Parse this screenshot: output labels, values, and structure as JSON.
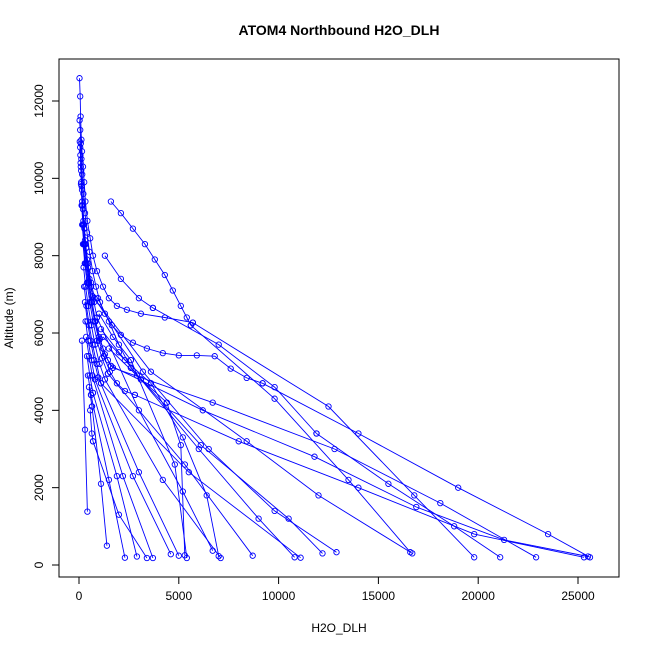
{
  "chart_data": {
    "type": "line",
    "title": "ATOM4 Northbound H2O_DLH",
    "xlabel": "H2O_DLH",
    "ylabel": "Altitude (m)",
    "xlim": [
      0,
      27000
    ],
    "ylim": [
      0,
      12600
    ],
    "x_ticks": [
      0,
      5000,
      10000,
      15000,
      20000,
      25000
    ],
    "y_ticks": [
      0,
      2000,
      4000,
      6000,
      8000,
      10000,
      12000
    ],
    "color": "#0000ff",
    "marker": "open-circle",
    "grid": false,
    "legend": "none",
    "series": [
      {
        "x": [
          25,
          60,
          80,
          120,
          150,
          200,
          260,
          320,
          420,
          560,
          700,
          900,
          1200,
          1500,
          1900,
          2400,
          3100,
          4300,
          5700
        ],
        "y": [
          12590,
          12120,
          11600,
          11000,
          10700,
          10300,
          9900,
          9400,
          8900,
          8450,
          8000,
          7600,
          7200,
          6900,
          6700,
          6600,
          6500,
          6400,
          6270
        ]
      },
      {
        "x": [
          5700,
          12500,
          16800,
          19800
        ],
        "y": [
          6270,
          4100,
          1800,
          200
        ]
      },
      {
        "x": [
          30,
          60,
          90,
          120,
          160,
          220,
          300,
          400,
          520,
          680,
          850,
          1050,
          1300,
          1650,
          2100,
          2700,
          3400,
          4200,
          5000,
          5900,
          6800,
          7600,
          8400,
          9200
        ],
        "y": [
          11500,
          11250,
          10900,
          10500,
          10100,
          9600,
          9100,
          8600,
          8100,
          7600,
          7200,
          6800,
          6500,
          6200,
          5950,
          5750,
          5600,
          5480,
          5420,
          5420,
          5400,
          5080,
          4840,
          4700
        ]
      },
      {
        "x": [
          9200,
          14000,
          19000,
          23500,
          25600
        ],
        "y": [
          4700,
          3400,
          2000,
          800,
          200
        ]
      },
      {
        "x": [
          40,
          70,
          110,
          150,
          200,
          270,
          350,
          450,
          600,
          750,
          900
        ],
        "y": [
          10950,
          10600,
          10200,
          9700,
          9200,
          8700,
          8200,
          7700,
          7200,
          6800,
          6400
        ]
      },
      {
        "x": [
          900,
          3000,
          5200,
          6700
        ],
        "y": [
          6400,
          4000,
          1900,
          370
        ]
      },
      {
        "x": [
          60,
          90,
          130,
          180,
          250,
          330,
          450,
          600,
          780
        ],
        "y": [
          10800,
          10300,
          9800,
          9300,
          8800,
          8300,
          7800,
          7300,
          6900
        ]
      },
      {
        "x": [
          780,
          3200,
          6500,
          9800,
          12900
        ],
        "y": [
          6900,
          5000,
          3000,
          1400,
          330
        ]
      },
      {
        "x": [
          80,
          110,
          160,
          220,
          300,
          400,
          520,
          680
        ],
        "y": [
          10400,
          9900,
          9400,
          8900,
          8400,
          7900,
          7400,
          6950
        ]
      },
      {
        "x": [
          680,
          3600,
          8400,
          12000,
          16700
        ],
        "y": [
          6950,
          5000,
          3200,
          1800,
          300
        ]
      },
      {
        "x": [
          100,
          150,
          210,
          290,
          380,
          500,
          650,
          820,
          1000,
          1200,
          1450,
          1700
        ],
        "y": [
          9850,
          9300,
          8800,
          8300,
          7800,
          7300,
          6800,
          6300,
          5900,
          5600,
          5300,
          5100
        ]
      },
      {
        "x": [
          1700,
          6700,
          12800,
          18100,
          22900
        ],
        "y": [
          5100,
          4200,
          3000,
          1600,
          200
        ]
      },
      {
        "x": [
          130,
          200,
          280,
          380,
          500,
          650,
          830,
          1050,
          1300,
          1600
        ],
        "y": [
          9300,
          8800,
          8300,
          7800,
          7300,
          6800,
          6300,
          5850,
          5450,
          5150
        ]
      },
      {
        "x": [
          1600,
          6200,
          11800,
          16900,
          21300,
          25500
        ],
        "y": [
          5150,
          4000,
          2800,
          1500,
          650,
          220
        ]
      },
      {
        "x": [
          160,
          240,
          330,
          450,
          600,
          780,
          1000,
          1250,
          1550,
          1900,
          2300,
          2800
        ],
        "y": [
          8800,
          8300,
          7800,
          7300,
          6800,
          6300,
          5800,
          5400,
          5000,
          4700,
          4500,
          4400
        ]
      },
      {
        "x": [
          2800,
          8000,
          14000,
          19800,
          25300
        ],
        "y": [
          4400,
          3200,
          2000,
          800,
          200
        ]
      },
      {
        "x": [
          200,
          290,
          400,
          540,
          700,
          900,
          1150,
          1450
        ],
        "y": [
          8300,
          7800,
          7300,
          6800,
          6300,
          5800,
          5350,
          4950
        ]
      },
      {
        "x": [
          1450,
          5300,
          8700
        ],
        "y": [
          4950,
          2600,
          240
        ]
      },
      {
        "x": [
          230,
          330,
          460,
          620,
          800,
          1030,
          1300
        ],
        "y": [
          7700,
          7200,
          6700,
          6200,
          5700,
          5200,
          4800
        ]
      },
      {
        "x": [
          1300,
          4200,
          7100
        ],
        "y": [
          4800,
          2200,
          180
        ]
      },
      {
        "x": [
          260,
          370,
          510,
          680,
          880,
          1100
        ],
        "y": [
          7200,
          6700,
          6200,
          5700,
          5200,
          4700
        ]
      },
      {
        "x": [
          1100,
          5500,
          11100
        ],
        "y": [
          4700,
          2400,
          190
        ]
      },
      {
        "x": [
          300,
          420,
          580,
          760,
          960
        ],
        "y": [
          6800,
          6300,
          5800,
          5300,
          4850
        ]
      },
      {
        "x": [
          960,
          3000,
          5000
        ],
        "y": [
          4850,
          2400,
          240
        ]
      },
      {
        "x": [
          330,
          460,
          620,
          800
        ],
        "y": [
          6300,
          5800,
          5300,
          4800
        ]
      },
      {
        "x": [
          800,
          2700,
          4600
        ],
        "y": [
          4800,
          2300,
          280
        ]
      },
      {
        "x": [
          360,
          500,
          660
        ],
        "y": [
          5900,
          5400,
          4900
        ]
      },
      {
        "x": [
          660,
          2200,
          3700
        ],
        "y": [
          4900,
          2300,
          180
        ]
      },
      {
        "x": [
          400,
          540,
          700
        ],
        "y": [
          5400,
          4900,
          4450
        ]
      },
      {
        "x": [
          700,
          1900,
          2900
        ],
        "y": [
          4450,
          2300,
          220
        ]
      },
      {
        "x": [
          450,
          600
        ],
        "y": [
          4900,
          4400
        ]
      },
      {
        "x": [
          600,
          1500,
          2300
        ],
        "y": [
          4400,
          2200,
          190
        ]
      },
      {
        "x": [
          500,
          650
        ],
        "y": [
          4600,
          4100
        ]
      },
      {
        "x": [
          650,
          1100,
          1400
        ],
        "y": [
          4100,
          2100,
          500
        ]
      },
      {
        "x": [
          560,
          640,
          700
        ],
        "y": [
          4000,
          3400,
          3200
        ]
      },
      {
        "x": [
          700,
          2000,
          3400
        ],
        "y": [
          3200,
          1300,
          180
        ]
      },
      {
        "x": [
          150,
          300,
          420
        ],
        "y": [
          5800,
          3500,
          1380
        ]
      },
      {
        "x": [
          1600,
          2100,
          2700,
          3300,
          3800,
          4300,
          4700,
          5100,
          5400,
          5600
        ],
        "y": [
          9400,
          9100,
          8700,
          8300,
          7900,
          7500,
          7100,
          6700,
          6400,
          6200
        ]
      },
      {
        "x": [
          5600,
          9800,
          13500,
          16600
        ],
        "y": [
          6200,
          4300,
          2200,
          330
        ]
      },
      {
        "x": [
          950,
          1500,
          2000,
          2600
        ],
        "y": [
          6900,
          6300,
          5700,
          5100
        ]
      },
      {
        "x": [
          2600,
          6100,
          10500,
          12200
        ],
        "y": [
          5100,
          3100,
          1200,
          300
        ]
      },
      {
        "x": [
          1000,
          1700,
          2600
        ],
        "y": [
          6500,
          5900,
          5300
        ]
      },
      {
        "x": [
          2600,
          4800,
          5400
        ],
        "y": [
          5300,
          2600,
          180
        ]
      },
      {
        "x": [
          1100,
          2000,
          3100
        ],
        "y": [
          6100,
          5500,
          4800
        ]
      },
      {
        "x": [
          3100,
          6000,
          9000,
          10800
        ],
        "y": [
          4800,
          3000,
          1200,
          200
        ]
      },
      {
        "x": [
          1200,
          2300,
          3600
        ],
        "y": [
          5900,
          5300,
          4700
        ]
      },
      {
        "x": [
          3600,
          5200,
          6400,
          7000
        ],
        "y": [
          4700,
          3300,
          1800,
          230
        ]
      },
      {
        "x": [
          1500,
          2900,
          4400
        ],
        "y": [
          5600,
          4900,
          4200
        ]
      },
      {
        "x": [
          4400,
          5100,
          5300
        ],
        "y": [
          4200,
          3100,
          250
        ]
      },
      {
        "x": [
          1300,
          2100,
          3000,
          3700
        ],
        "y": [
          8000,
          7400,
          6900,
          6650
        ]
      },
      {
        "x": [
          3700,
          7000,
          9800,
          11900
        ],
        "y": [
          6650,
          5700,
          4600,
          3400
        ]
      },
      {
        "x": [
          11900,
          15500,
          18800,
          21100
        ],
        "y": [
          3400,
          2100,
          1000,
          200
        ]
      }
    ]
  }
}
